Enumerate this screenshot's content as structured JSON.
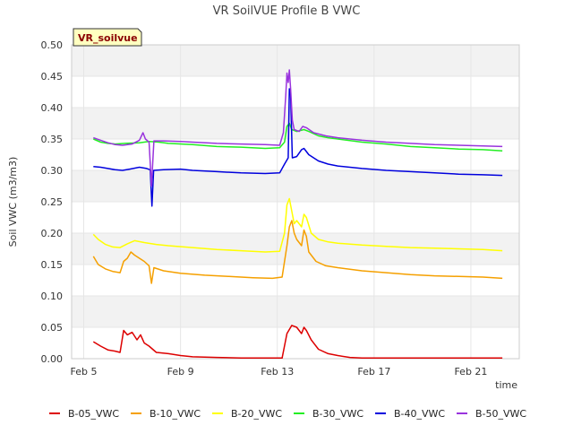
{
  "chart_data": {
    "type": "line",
    "title": "VR SoilVUE Profile B VWC",
    "xlabel": "time",
    "ylabel": "Soil VWC (m3/m3)",
    "badge": "VR_soilvue",
    "xlim": [
      0,
      18.5
    ],
    "ylim": [
      0,
      0.5
    ],
    "x_ticks": [
      {
        "value": 0.5,
        "label": "Feb 5"
      },
      {
        "value": 4.5,
        "label": "Feb 9"
      },
      {
        "value": 8.5,
        "label": "Feb 13"
      },
      {
        "value": 12.5,
        "label": "Feb 17"
      },
      {
        "value": 16.5,
        "label": "Feb 21"
      }
    ],
    "y_ticks": [
      0.0,
      0.05,
      0.1,
      0.15,
      0.2,
      0.25,
      0.3,
      0.35,
      0.4,
      0.45,
      0.5
    ],
    "grid": true,
    "legend_position": "bottom",
    "series": [
      {
        "name": "B-05_VWC",
        "color": "#dd0000",
        "points": [
          [
            0.9,
            0.027
          ],
          [
            1.2,
            0.02
          ],
          [
            1.5,
            0.014
          ],
          [
            1.8,
            0.012
          ],
          [
            2.0,
            0.01
          ],
          [
            2.15,
            0.045
          ],
          [
            2.3,
            0.038
          ],
          [
            2.5,
            0.042
          ],
          [
            2.7,
            0.03
          ],
          [
            2.85,
            0.038
          ],
          [
            3.0,
            0.025
          ],
          [
            3.2,
            0.02
          ],
          [
            3.5,
            0.01
          ],
          [
            4.0,
            0.008
          ],
          [
            4.5,
            0.005
          ],
          [
            5.0,
            0.003
          ],
          [
            6.0,
            0.002
          ],
          [
            7.0,
            0.001
          ],
          [
            8.0,
            0.001
          ],
          [
            8.7,
            0.001
          ],
          [
            8.9,
            0.04
          ],
          [
            9.1,
            0.053
          ],
          [
            9.3,
            0.05
          ],
          [
            9.5,
            0.04
          ],
          [
            9.6,
            0.05
          ],
          [
            9.7,
            0.045
          ],
          [
            9.9,
            0.03
          ],
          [
            10.2,
            0.015
          ],
          [
            10.6,
            0.008
          ],
          [
            11.0,
            0.005
          ],
          [
            11.5,
            0.002
          ],
          [
            12.0,
            0.001
          ],
          [
            14.0,
            0.001
          ],
          [
            16.0,
            0.001
          ],
          [
            17.8,
            0.001
          ]
        ]
      },
      {
        "name": "B-10_VWC",
        "color": "#f5a000",
        "points": [
          [
            0.9,
            0.163
          ],
          [
            1.1,
            0.15
          ],
          [
            1.4,
            0.143
          ],
          [
            1.7,
            0.139
          ],
          [
            2.0,
            0.137
          ],
          [
            2.15,
            0.155
          ],
          [
            2.3,
            0.16
          ],
          [
            2.45,
            0.17
          ],
          [
            2.6,
            0.165
          ],
          [
            2.8,
            0.16
          ],
          [
            3.0,
            0.155
          ],
          [
            3.2,
            0.148
          ],
          [
            3.3,
            0.12
          ],
          [
            3.4,
            0.145
          ],
          [
            3.8,
            0.14
          ],
          [
            4.5,
            0.136
          ],
          [
            5.5,
            0.133
          ],
          [
            6.5,
            0.131
          ],
          [
            7.5,
            0.129
          ],
          [
            8.3,
            0.128
          ],
          [
            8.7,
            0.13
          ],
          [
            8.9,
            0.18
          ],
          [
            9.0,
            0.21
          ],
          [
            9.1,
            0.22
          ],
          [
            9.2,
            0.2
          ],
          [
            9.3,
            0.19
          ],
          [
            9.5,
            0.18
          ],
          [
            9.6,
            0.205
          ],
          [
            9.7,
            0.195
          ],
          [
            9.8,
            0.17
          ],
          [
            10.1,
            0.155
          ],
          [
            10.5,
            0.148
          ],
          [
            11.0,
            0.145
          ],
          [
            12.0,
            0.14
          ],
          [
            13.0,
            0.137
          ],
          [
            14.0,
            0.134
          ],
          [
            15.0,
            0.132
          ],
          [
            16.0,
            0.131
          ],
          [
            17.0,
            0.13
          ],
          [
            17.8,
            0.128
          ]
        ]
      },
      {
        "name": "B-20_VWC",
        "color": "#ffff00",
        "points": [
          [
            0.9,
            0.198
          ],
          [
            1.1,
            0.19
          ],
          [
            1.4,
            0.182
          ],
          [
            1.7,
            0.178
          ],
          [
            2.0,
            0.177
          ],
          [
            2.3,
            0.183
          ],
          [
            2.6,
            0.188
          ],
          [
            3.0,
            0.185
          ],
          [
            3.5,
            0.182
          ],
          [
            4.0,
            0.18
          ],
          [
            5.0,
            0.177
          ],
          [
            6.0,
            0.174
          ],
          [
            7.0,
            0.172
          ],
          [
            8.0,
            0.17
          ],
          [
            8.6,
            0.171
          ],
          [
            8.8,
            0.2
          ],
          [
            8.9,
            0.245
          ],
          [
            9.0,
            0.255
          ],
          [
            9.1,
            0.235
          ],
          [
            9.2,
            0.215
          ],
          [
            9.3,
            0.22
          ],
          [
            9.5,
            0.21
          ],
          [
            9.6,
            0.23
          ],
          [
            9.7,
            0.225
          ],
          [
            9.9,
            0.2
          ],
          [
            10.2,
            0.19
          ],
          [
            10.6,
            0.186
          ],
          [
            11.0,
            0.184
          ],
          [
            12.0,
            0.181
          ],
          [
            13.0,
            0.179
          ],
          [
            14.0,
            0.177
          ],
          [
            15.0,
            0.176
          ],
          [
            16.0,
            0.175
          ],
          [
            17.0,
            0.174
          ],
          [
            17.8,
            0.172
          ]
        ]
      },
      {
        "name": "B-30_VWC",
        "color": "#22ee22",
        "points": [
          [
            0.9,
            0.35
          ],
          [
            1.2,
            0.345
          ],
          [
            1.5,
            0.343
          ],
          [
            1.8,
            0.342
          ],
          [
            2.2,
            0.343
          ],
          [
            2.8,
            0.344
          ],
          [
            3.2,
            0.346
          ],
          [
            3.6,
            0.345
          ],
          [
            4.0,
            0.343
          ],
          [
            5.0,
            0.341
          ],
          [
            6.0,
            0.338
          ],
          [
            7.0,
            0.337
          ],
          [
            8.0,
            0.335
          ],
          [
            8.6,
            0.336
          ],
          [
            8.8,
            0.345
          ],
          [
            8.9,
            0.37
          ],
          [
            9.0,
            0.375
          ],
          [
            9.1,
            0.365
          ],
          [
            9.3,
            0.362
          ],
          [
            9.6,
            0.365
          ],
          [
            9.8,
            0.362
          ],
          [
            10.2,
            0.355
          ],
          [
            10.6,
            0.352
          ],
          [
            11.0,
            0.35
          ],
          [
            12.0,
            0.345
          ],
          [
            13.0,
            0.342
          ],
          [
            14.0,
            0.338
          ],
          [
            15.0,
            0.336
          ],
          [
            16.0,
            0.334
          ],
          [
            17.0,
            0.333
          ],
          [
            17.8,
            0.331
          ]
        ]
      },
      {
        "name": "B-40_VWC",
        "color": "#0000dd",
        "points": [
          [
            0.9,
            0.306
          ],
          [
            1.2,
            0.305
          ],
          [
            1.5,
            0.303
          ],
          [
            1.8,
            0.301
          ],
          [
            2.1,
            0.3
          ],
          [
            2.4,
            0.302
          ],
          [
            2.8,
            0.305
          ],
          [
            3.1,
            0.303
          ],
          [
            3.25,
            0.301
          ],
          [
            3.32,
            0.243
          ],
          [
            3.39,
            0.3
          ],
          [
            3.8,
            0.301
          ],
          [
            4.5,
            0.302
          ],
          [
            5.0,
            0.3
          ],
          [
            6.0,
            0.298
          ],
          [
            7.0,
            0.296
          ],
          [
            8.0,
            0.295
          ],
          [
            8.6,
            0.296
          ],
          [
            8.8,
            0.31
          ],
          [
            8.95,
            0.32
          ],
          [
            9.0,
            0.43
          ],
          [
            9.05,
            0.42
          ],
          [
            9.12,
            0.32
          ],
          [
            9.3,
            0.322
          ],
          [
            9.5,
            0.333
          ],
          [
            9.6,
            0.335
          ],
          [
            9.8,
            0.325
          ],
          [
            10.2,
            0.315
          ],
          [
            10.6,
            0.31
          ],
          [
            11.0,
            0.307
          ],
          [
            12.0,
            0.303
          ],
          [
            13.0,
            0.3
          ],
          [
            14.0,
            0.298
          ],
          [
            15.0,
            0.296
          ],
          [
            16.0,
            0.294
          ],
          [
            17.0,
            0.293
          ],
          [
            17.8,
            0.292
          ]
        ]
      },
      {
        "name": "B-50_VWC",
        "color": "#9933dd",
        "points": [
          [
            0.9,
            0.352
          ],
          [
            1.2,
            0.348
          ],
          [
            1.5,
            0.344
          ],
          [
            1.8,
            0.341
          ],
          [
            2.1,
            0.34
          ],
          [
            2.5,
            0.342
          ],
          [
            2.8,
            0.348
          ],
          [
            2.95,
            0.36
          ],
          [
            3.05,
            0.35
          ],
          [
            3.2,
            0.345
          ],
          [
            3.3,
            0.275
          ],
          [
            3.4,
            0.347
          ],
          [
            3.8,
            0.347
          ],
          [
            4.5,
            0.346
          ],
          [
            5.0,
            0.345
          ],
          [
            6.0,
            0.343
          ],
          [
            7.0,
            0.342
          ],
          [
            8.0,
            0.341
          ],
          [
            8.6,
            0.34
          ],
          [
            8.75,
            0.36
          ],
          [
            8.85,
            0.42
          ],
          [
            8.9,
            0.455
          ],
          [
            8.95,
            0.44
          ],
          [
            9.0,
            0.46
          ],
          [
            9.05,
            0.43
          ],
          [
            9.12,
            0.38
          ],
          [
            9.2,
            0.365
          ],
          [
            9.4,
            0.362
          ],
          [
            9.55,
            0.37
          ],
          [
            9.7,
            0.368
          ],
          [
            10.0,
            0.36
          ],
          [
            10.5,
            0.355
          ],
          [
            11.0,
            0.352
          ],
          [
            12.0,
            0.348
          ],
          [
            13.0,
            0.345
          ],
          [
            14.0,
            0.343
          ],
          [
            15.0,
            0.341
          ],
          [
            16.0,
            0.34
          ],
          [
            17.0,
            0.339
          ],
          [
            17.8,
            0.338
          ]
        ]
      }
    ]
  }
}
